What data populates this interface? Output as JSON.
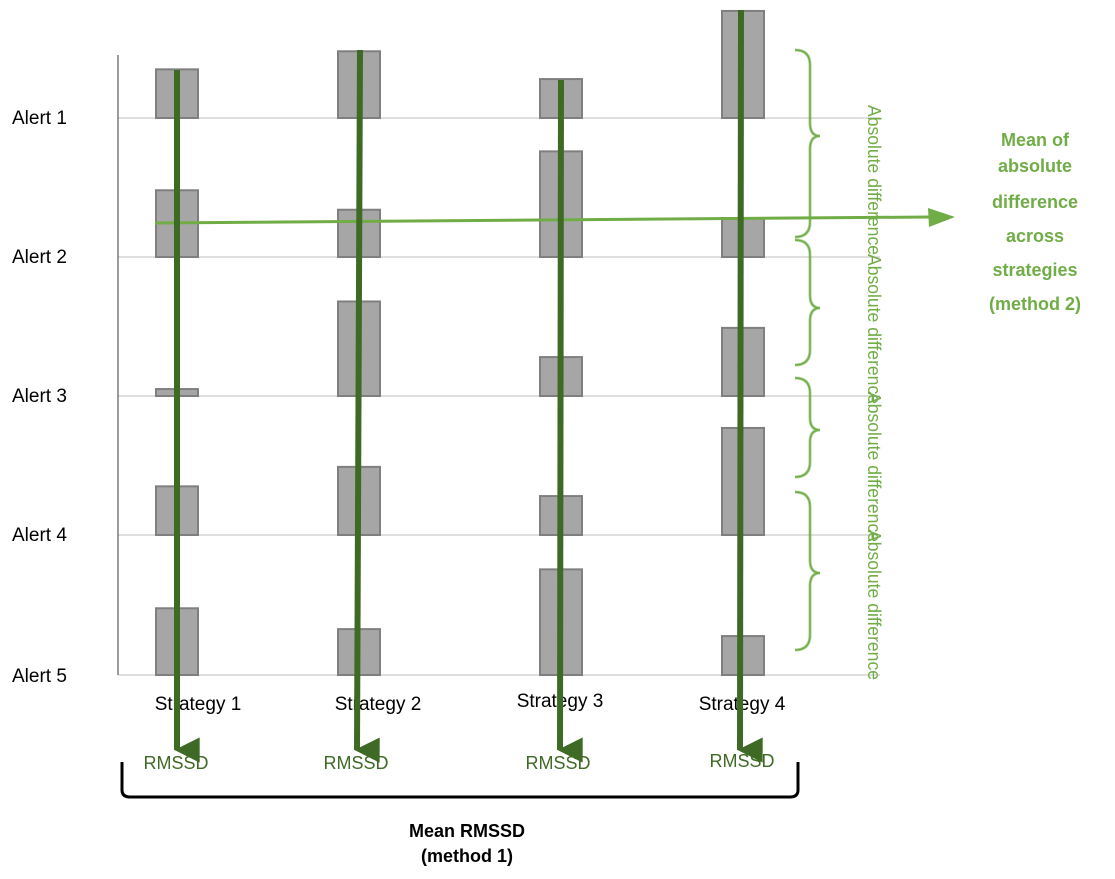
{
  "colors": {
    "bar_fill": "#a6a6a6",
    "bar_stroke": "#7f7f7f",
    "grid": "#bfbfbf",
    "axis": "#595959",
    "dark_green": "#3e6a25",
    "light_green": "#70ad47",
    "text": "#000000"
  },
  "rows": [
    "Alert 1",
    "Alert 2",
    "Alert 3",
    "Alert 4",
    "Alert 5"
  ],
  "strategies": [
    "Strategy 1",
    "Strategy 2",
    "Strategy 3",
    "Strategy 4"
  ],
  "bars": [
    [
      0.35,
      0.48,
      0.05,
      0.35,
      0.48
    ],
    [
      0.48,
      0.34,
      0.68,
      0.49,
      0.33
    ],
    [
      0.28,
      0.76,
      0.28,
      0.28,
      0.76
    ],
    [
      0.77,
      0.28,
      0.49,
      0.77,
      0.28
    ]
  ],
  "column_label": "RMSSD",
  "difference_label": "Absolute difference",
  "method1": {
    "line1": "Mean RMSSD",
    "line2": "(method 1)"
  },
  "method2": {
    "lines": [
      "Mean of",
      "absolute",
      "difference",
      "across",
      "strategies",
      "(method 2)"
    ]
  }
}
